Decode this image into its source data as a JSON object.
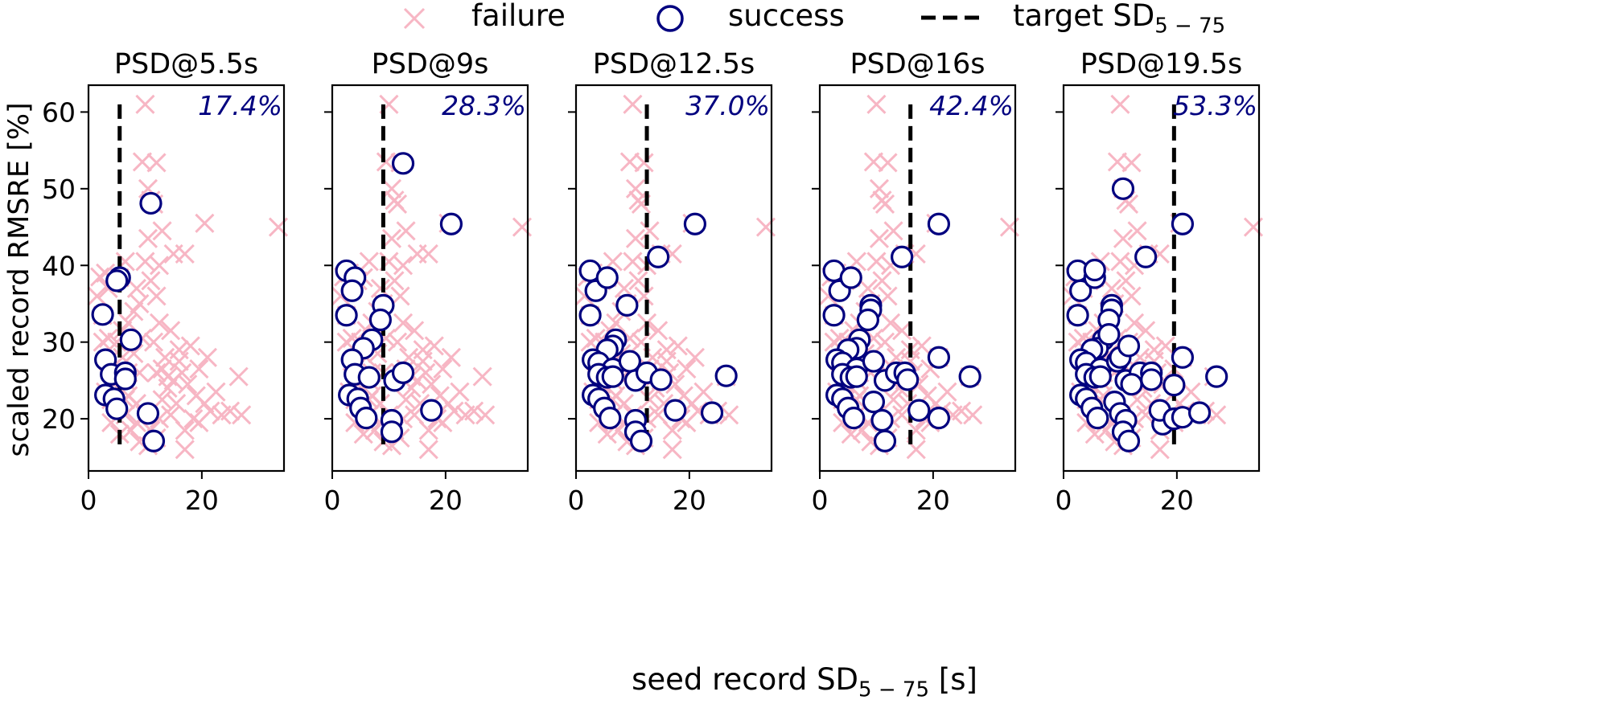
{
  "legend": {
    "failure": "failure",
    "success": "success",
    "target": "target SD",
    "target_sub": "5 − 75"
  },
  "xlabel": {
    "pre": "seed record SD",
    "sub": "5 − 75",
    "post": " [s]"
  },
  "ylabel": "scaled record RMSRE [%]",
  "colors": {
    "failure": "#f7b6c4",
    "success": "#00007f",
    "target_line": "#000000",
    "annotation": "#00007f"
  },
  "chart_data": {
    "type": "scatter",
    "xlim": [
      0,
      34.5
    ],
    "ylim": [
      13.2,
      63.5
    ],
    "xticks": [
      0,
      20
    ],
    "yticks": [
      20,
      30,
      40,
      50,
      60
    ],
    "line_span": [
      15.8,
      61
    ],
    "shared_y": true,
    "points": [
      [
        5.5,
        38.4
      ],
      [
        6.5,
        40.5
      ],
      [
        4.5,
        38.0
      ],
      [
        3.5,
        37.0
      ],
      [
        2.0,
        38.5
      ],
      [
        3.0,
        39.0
      ],
      [
        10.0,
        61.0
      ],
      [
        9.5,
        53.5
      ],
      [
        12.0,
        53.4
      ],
      [
        10.5,
        50.0
      ],
      [
        11.0,
        48.5
      ],
      [
        11.5,
        48.0
      ],
      [
        20.5,
        45.5
      ],
      [
        33.5,
        45.0
      ],
      [
        10.5,
        43.5
      ],
      [
        13.0,
        44.5
      ],
      [
        15.0,
        41.5
      ],
      [
        17.0,
        41.5
      ],
      [
        10.0,
        40.5
      ],
      [
        9.0,
        35.0
      ],
      [
        8.0,
        34.0
      ],
      [
        12.0,
        36.0
      ],
      [
        14.5,
        31.5
      ],
      [
        7.0,
        32.5
      ],
      [
        2.5,
        33.5
      ],
      [
        5.0,
        30.0
      ],
      [
        6.0,
        28.0
      ],
      [
        3.5,
        27.5
      ],
      [
        4.0,
        26.5
      ],
      [
        5.0,
        25.5
      ],
      [
        6.5,
        25.0
      ],
      [
        7.0,
        26.0
      ],
      [
        4.5,
        24.5
      ],
      [
        3.0,
        23.5
      ],
      [
        4.0,
        22.5
      ],
      [
        5.0,
        21.5
      ],
      [
        6.5,
        20.5
      ],
      [
        8.5,
        19.5
      ],
      [
        10.0,
        20.5
      ],
      [
        11.0,
        18.5
      ],
      [
        12.0,
        17.5
      ],
      [
        9.0,
        26.0
      ],
      [
        12.0,
        26.0
      ],
      [
        13.0,
        26.5
      ],
      [
        14.0,
        25.5
      ],
      [
        15.0,
        25.0
      ],
      [
        16.0,
        27.5
      ],
      [
        18.0,
        29.5
      ],
      [
        17.5,
        24.5
      ],
      [
        19.0,
        23.0
      ],
      [
        21.0,
        28.0
      ],
      [
        20.5,
        22.0
      ],
      [
        21.5,
        21.0
      ],
      [
        23.5,
        20.5
      ],
      [
        25.0,
        21.0
      ],
      [
        27.0,
        20.5
      ],
      [
        26.5,
        25.5
      ],
      [
        18.5,
        20.0
      ],
      [
        19.5,
        19.5
      ],
      [
        17.0,
        18.5
      ],
      [
        17.0,
        16.0
      ],
      [
        14.5,
        20.5
      ],
      [
        13.0,
        22.5
      ],
      [
        8.5,
        22.0
      ],
      [
        7.0,
        23.0
      ],
      [
        11.5,
        30.0
      ],
      [
        16.0,
        29.0
      ],
      [
        14.0,
        24.0
      ],
      [
        15.5,
        22.0
      ],
      [
        12.5,
        20.0
      ],
      [
        9.5,
        30.5
      ],
      [
        8.0,
        28.5
      ],
      [
        16.5,
        26.0
      ],
      [
        5.5,
        18.0
      ],
      [
        7.5,
        18.5
      ],
      [
        9.0,
        17.0
      ],
      [
        10.5,
        16.5
      ],
      [
        3.5,
        30.5
      ],
      [
        1.5,
        36.0
      ],
      [
        2.5,
        30.0
      ],
      [
        6.0,
        31.5
      ],
      [
        8.5,
        37.0
      ],
      [
        12.5,
        32.5
      ],
      [
        13.5,
        28.0
      ],
      [
        19.5,
        26.5
      ],
      [
        22.5,
        23.5
      ],
      [
        4.0,
        19.5
      ],
      [
        6.5,
        22.5
      ],
      [
        11.0,
        38.0
      ],
      [
        12.5,
        40.0
      ]
    ],
    "panels": [
      {
        "title": "PSD@5.5s",
        "target_x": 5.5,
        "annotation": "17.4%",
        "success": [
          [
            5.5,
            38.4
          ],
          [
            5.0,
            38.0
          ],
          [
            2.5,
            33.6
          ],
          [
            7.5,
            30.3
          ],
          [
            3.0,
            27.7
          ],
          [
            4.0,
            25.8
          ],
          [
            6.5,
            26.0
          ],
          [
            6.5,
            25.2
          ],
          [
            3.0,
            23.1
          ],
          [
            4.5,
            22.6
          ],
          [
            5.0,
            21.3
          ],
          [
            10.5,
            20.7
          ],
          [
            11.0,
            48.1
          ],
          [
            11.5,
            17.1
          ]
        ]
      },
      {
        "title": "PSD@9s",
        "target_x": 9.0,
        "annotation": "28.3%",
        "success": [
          [
            2.5,
            39.3
          ],
          [
            4.0,
            38.4
          ],
          [
            3.5,
            36.7
          ],
          [
            2.5,
            33.5
          ],
          [
            9.0,
            34.8
          ],
          [
            8.5,
            32.9
          ],
          [
            7.0,
            30.3
          ],
          [
            5.5,
            29.2
          ],
          [
            3.5,
            27.7
          ],
          [
            4.0,
            25.8
          ],
          [
            6.5,
            25.4
          ],
          [
            3.0,
            23.1
          ],
          [
            4.5,
            22.6
          ],
          [
            5.0,
            21.4
          ],
          [
            6.0,
            20.1
          ],
          [
            11.0,
            25.0
          ],
          [
            12.5,
            26.0
          ],
          [
            10.5,
            19.8
          ],
          [
            10.5,
            18.3
          ],
          [
            12.5,
            53.3
          ],
          [
            21.0,
            45.4
          ],
          [
            17.5,
            21.1
          ]
        ]
      },
      {
        "title": "PSD@12.5s",
        "target_x": 12.5,
        "annotation": "37.0%",
        "success": [
          [
            2.5,
            39.3
          ],
          [
            3.5,
            36.7
          ],
          [
            5.5,
            38.4
          ],
          [
            2.5,
            33.5
          ],
          [
            9.0,
            34.8
          ],
          [
            7.0,
            30.3
          ],
          [
            6.5,
            29.5
          ],
          [
            5.5,
            29.0
          ],
          [
            3.0,
            27.7
          ],
          [
            4.0,
            27.3
          ],
          [
            6.5,
            26.5
          ],
          [
            4.0,
            25.8
          ],
          [
            5.5,
            25.4
          ],
          [
            6.5,
            25.5
          ],
          [
            3.0,
            23.1
          ],
          [
            4.0,
            22.6
          ],
          [
            5.0,
            21.4
          ],
          [
            6.0,
            20.1
          ],
          [
            9.5,
            27.5
          ],
          [
            10.5,
            25.0
          ],
          [
            12.5,
            26.0
          ],
          [
            15.0,
            25.1
          ],
          [
            10.5,
            19.8
          ],
          [
            10.5,
            18.3
          ],
          [
            11.5,
            17.1
          ],
          [
            14.5,
            41.1
          ],
          [
            21.0,
            45.4
          ],
          [
            17.5,
            21.1
          ],
          [
            24.0,
            20.8
          ],
          [
            26.5,
            25.6
          ]
        ]
      },
      {
        "title": "PSD@16s",
        "target_x": 16.0,
        "annotation": "42.4%",
        "success": [
          [
            2.5,
            39.3
          ],
          [
            3.5,
            36.7
          ],
          [
            5.5,
            38.4
          ],
          [
            2.5,
            33.5
          ],
          [
            9.0,
            34.8
          ],
          [
            9.0,
            34.2
          ],
          [
            8.5,
            32.9
          ],
          [
            7.0,
            30.3
          ],
          [
            6.5,
            29.2
          ],
          [
            5.0,
            29.0
          ],
          [
            3.0,
            27.7
          ],
          [
            4.0,
            27.3
          ],
          [
            6.5,
            26.5
          ],
          [
            4.0,
            25.8
          ],
          [
            5.5,
            25.4
          ],
          [
            6.5,
            25.5
          ],
          [
            3.0,
            23.1
          ],
          [
            4.0,
            22.6
          ],
          [
            5.0,
            21.4
          ],
          [
            6.0,
            20.1
          ],
          [
            9.5,
            27.5
          ],
          [
            9.5,
            22.2
          ],
          [
            11.5,
            25.0
          ],
          [
            13.5,
            26.0
          ],
          [
            15.0,
            26.0
          ],
          [
            15.5,
            25.1
          ],
          [
            11.0,
            19.8
          ],
          [
            11.5,
            17.1
          ],
          [
            14.5,
            41.1
          ],
          [
            21.0,
            45.4
          ],
          [
            17.5,
            21.1
          ],
          [
            21.0,
            28.0
          ],
          [
            21.0,
            20.1
          ],
          [
            26.5,
            25.5
          ]
        ]
      },
      {
        "title": "PSD@19.5s",
        "target_x": 19.5,
        "annotation": "53.3%",
        "success": [
          [
            2.5,
            39.3
          ],
          [
            3.0,
            36.7
          ],
          [
            5.5,
            38.4
          ],
          [
            5.5,
            39.4
          ],
          [
            2.5,
            33.5
          ],
          [
            8.5,
            34.8
          ],
          [
            8.5,
            34.2
          ],
          [
            8.0,
            32.9
          ],
          [
            7.0,
            30.3
          ],
          [
            6.0,
            29.2
          ],
          [
            5.0,
            29.0
          ],
          [
            3.0,
            27.7
          ],
          [
            4.0,
            27.3
          ],
          [
            6.5,
            26.5
          ],
          [
            4.0,
            25.8
          ],
          [
            5.5,
            25.4
          ],
          [
            6.5,
            25.5
          ],
          [
            3.0,
            23.1
          ],
          [
            4.0,
            22.6
          ],
          [
            5.0,
            21.4
          ],
          [
            6.0,
            20.1
          ],
          [
            9.5,
            27.5
          ],
          [
            9.0,
            22.2
          ],
          [
            11.0,
            25.0
          ],
          [
            13.5,
            26.0
          ],
          [
            15.5,
            26.0
          ],
          [
            15.5,
            25.1
          ],
          [
            10.0,
            20.7
          ],
          [
            11.0,
            19.8
          ],
          [
            10.5,
            18.3
          ],
          [
            11.5,
            17.1
          ],
          [
            17.5,
            19.3
          ],
          [
            17.0,
            21.1
          ],
          [
            19.5,
            24.4
          ],
          [
            19.5,
            20.0
          ],
          [
            21.0,
            20.2
          ],
          [
            24.0,
            20.8
          ],
          [
            27.0,
            25.5
          ],
          [
            21.0,
            28.0
          ],
          [
            14.5,
            41.1
          ],
          [
            10.5,
            50.0
          ],
          [
            21.0,
            45.4
          ],
          [
            8.0,
            31.0
          ],
          [
            10.0,
            28.0
          ],
          [
            12.0,
            24.5
          ],
          [
            11.5,
            29.5
          ]
        ]
      }
    ]
  }
}
